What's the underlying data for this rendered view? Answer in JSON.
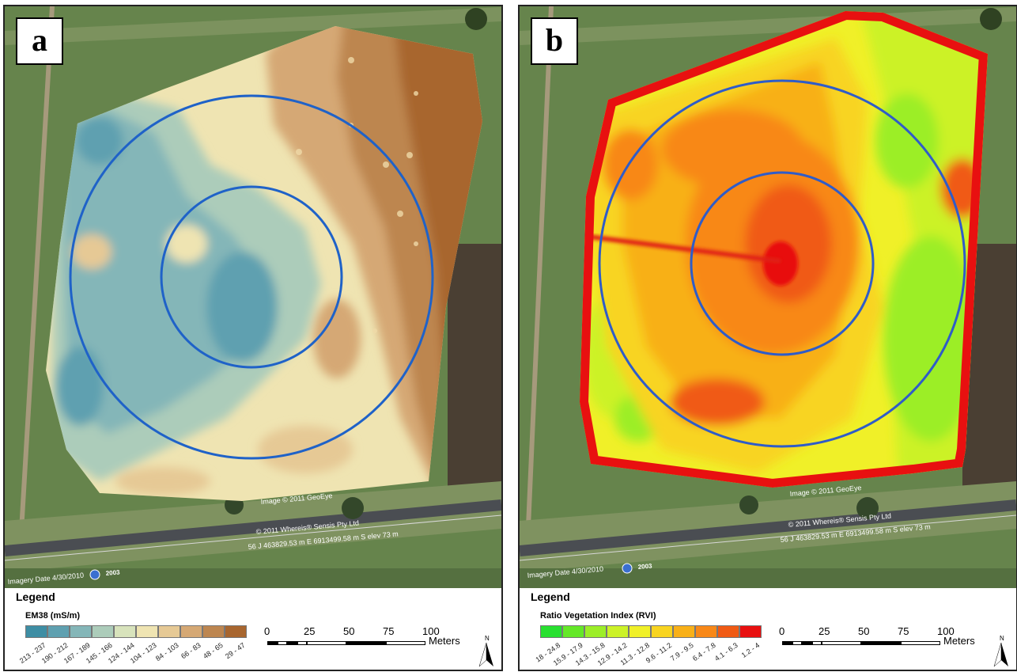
{
  "panels": [
    {
      "letter": "a",
      "legend_title": "Legend",
      "variable": "EM38 (mS/m)",
      "classes": [
        {
          "label": "213 - 237",
          "color": "#3e8ea4"
        },
        {
          "label": "190 - 212",
          "color": "#5fa0b0"
        },
        {
          "label": "167 - 189",
          "color": "#84b6b8"
        },
        {
          "label": "145 - 166",
          "color": "#acccba"
        },
        {
          "label": "124 - 144",
          "color": "#d8e3bc"
        },
        {
          "label": "104 - 123",
          "color": "#efe4b2"
        },
        {
          "label": "84 - 103",
          "color": "#e6c995"
        },
        {
          "label": "66 - 83",
          "color": "#d5a874"
        },
        {
          "label": "48 - 65",
          "color": "#bd8650"
        },
        {
          "label": "29 - 47",
          "color": "#a8662f"
        }
      ],
      "imagery_date": "Imagery Date  4/30/2010",
      "imagery_year": "2003",
      "copyright_1": "Image © 2011 GeoEye",
      "copyright_2": "© 2011 Whereis® Sensis Pty Ltd",
      "coords": "56 J 463829.53 m E 6913499.58 m S  elev   73 m"
    },
    {
      "letter": "b",
      "legend_title": "Legend",
      "variable": "Ratio Vegetation Index (RVI)",
      "classes": [
        {
          "label": "18 - 24.8",
          "color": "#28e030"
        },
        {
          "label": "15.9 - 17.9",
          "color": "#64e828"
        },
        {
          "label": "14.3 - 15.8",
          "color": "#9cee28"
        },
        {
          "label": "12.9 - 14.2",
          "color": "#ccf228"
        },
        {
          "label": "11.3 - 12.8",
          "color": "#f0f028"
        },
        {
          "label": "9.6 - 11.2",
          "color": "#f8d420"
        },
        {
          "label": "7.9 - 9.5",
          "color": "#f8b018"
        },
        {
          "label": "6.4 - 7.8",
          "color": "#f88818"
        },
        {
          "label": "4.1 - 6.3",
          "color": "#f05a14"
        },
        {
          "label": "1.2 - 4",
          "color": "#e81010"
        }
      ],
      "imagery_date": "Imagery Date  4/30/2010",
      "imagery_year": "2003",
      "copyright_1": "Image © 2011 GeoEye",
      "copyright_2": "© 2011 Whereis® Sensis Pty Ltd",
      "coords": "56 J 463829.53 m E 6913499.58 m S  elev   73 m"
    }
  ],
  "scale": {
    "ticks": [
      "0",
      "25",
      "50",
      "75",
      "100"
    ],
    "unit": "Meters"
  },
  "north_label": "N"
}
